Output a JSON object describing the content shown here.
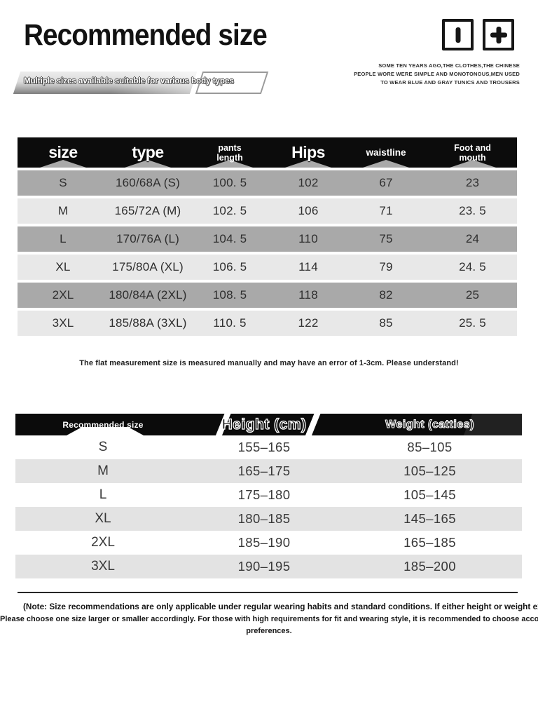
{
  "page": {
    "title": "Recommended size"
  },
  "icons": {
    "left": "vertical-bar-icon",
    "right": "plus-icon"
  },
  "banner": {
    "label": "Multiple sizes available suitable for various body types"
  },
  "fine_print": {
    "lines": [
      "SOME TEN YEARS AGO,THE CLOTHES,THE CHINESE",
      "PEOPLE WORE WERE SIMPLE AND MONOTONOUS,MEN USED",
      "TO WEAR BLUE AND GRAY TUNICS AND TROUSERS"
    ]
  },
  "size_table": {
    "columns": [
      {
        "label": "size"
      },
      {
        "label": "type"
      },
      {
        "label": "pants",
        "label2": "length"
      },
      {
        "label": "Hips"
      },
      {
        "label": "waistline"
      },
      {
        "label": "Foot and",
        "label2": "mouth"
      }
    ],
    "rows": [
      {
        "size": "S",
        "type": "160/68A (S)",
        "pants_length": "100. 5",
        "hips": "102",
        "waistline": "67",
        "foot_and_mouth": "23"
      },
      {
        "size": "M",
        "type": "165/72A (M)",
        "pants_length": "102. 5",
        "hips": "106",
        "waistline": "71",
        "foot_and_mouth": "23. 5"
      },
      {
        "size": "L",
        "type": "170/76A (L)",
        "pants_length": "104. 5",
        "hips": "110",
        "waistline": "75",
        "foot_and_mouth": "24"
      },
      {
        "size": "XL",
        "type": "175/80A (XL)",
        "pants_length": "106. 5",
        "hips": "114",
        "waistline": "79",
        "foot_and_mouth": "24. 5"
      },
      {
        "size": "2XL",
        "type": "180/84A (2XL)",
        "pants_length": "108. 5",
        "hips": "118",
        "waistline": "82",
        "foot_and_mouth": "25"
      },
      {
        "size": "3XL",
        "type": "185/88A (3XL)",
        "pants_length": "110. 5",
        "hips": "122",
        "waistline": "85",
        "foot_and_mouth": "25. 5"
      }
    ]
  },
  "measure_note": "The flat measurement size is measured manually and may have an error of 1-3cm. Please understand!",
  "recommend_table": {
    "columns": [
      "Recommended size",
      "Height (cm)",
      "Weight (catties)"
    ],
    "rows": [
      {
        "size": "S",
        "height": "155–165",
        "weight": "85–105"
      },
      {
        "size": "M",
        "height": "165–175",
        "weight": "105–125"
      },
      {
        "size": "L",
        "height": "175–180",
        "weight": "105–145"
      },
      {
        "size": "XL",
        "height": "180–185",
        "weight": "145–165"
      },
      {
        "size": "2XL",
        "height": "185–190",
        "weight": "165–185"
      },
      {
        "size": "3XL",
        "height": "190–195",
        "weight": "185–200"
      }
    ]
  },
  "bottom_note": {
    "lines": [
      "(Note: Size recommendations are only applicable under regular wearing habits and standard conditions. If either height or weight exceeds the recommended range,",
      "Please choose one size larger or smaller accordingly. For those with high requirements for fit and wearing style, it is recommended to choose according to your measurements and wearing",
      "preferences."
    ]
  },
  "colors": {
    "header_bg": "#0c0c0c",
    "row_gray": "#a9a9a9",
    "row_light": "#e8e8e8",
    "row_light_2": "#e3e3e3",
    "text": "#2e2e2e"
  }
}
